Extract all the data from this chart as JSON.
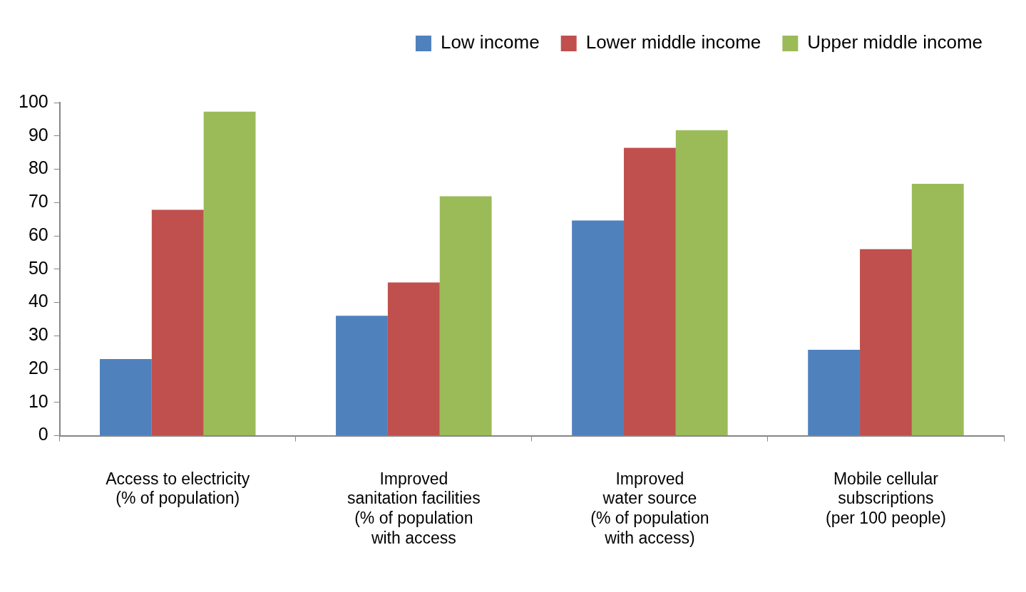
{
  "chart_data": {
    "type": "bar",
    "categories": [
      "Access to electricity\n(% of population)",
      "Improved\nsanitation facilities\n(% of population\nwith access",
      "Improved\nwater source\n(% of population\nwith access)",
      "Mobile cellular\nsubscriptions\n(per 100 people)"
    ],
    "series": [
      {
        "name": "Low income",
        "color": "#4f81bd",
        "values": [
          23.0,
          36.0,
          64.6,
          25.8
        ]
      },
      {
        "name": "Lower middle income",
        "color": "#c0504d",
        "values": [
          67.8,
          46.0,
          86.4,
          56.0
        ]
      },
      {
        "name": "Upper middle income",
        "color": "#9bbb59",
        "values": [
          97.3,
          71.9,
          91.7,
          75.6
        ]
      }
    ],
    "ylim": [
      0,
      100
    ],
    "yticks": [
      0,
      10,
      20,
      30,
      40,
      50,
      60,
      70,
      80,
      90,
      100
    ],
    "legend": "top right"
  }
}
